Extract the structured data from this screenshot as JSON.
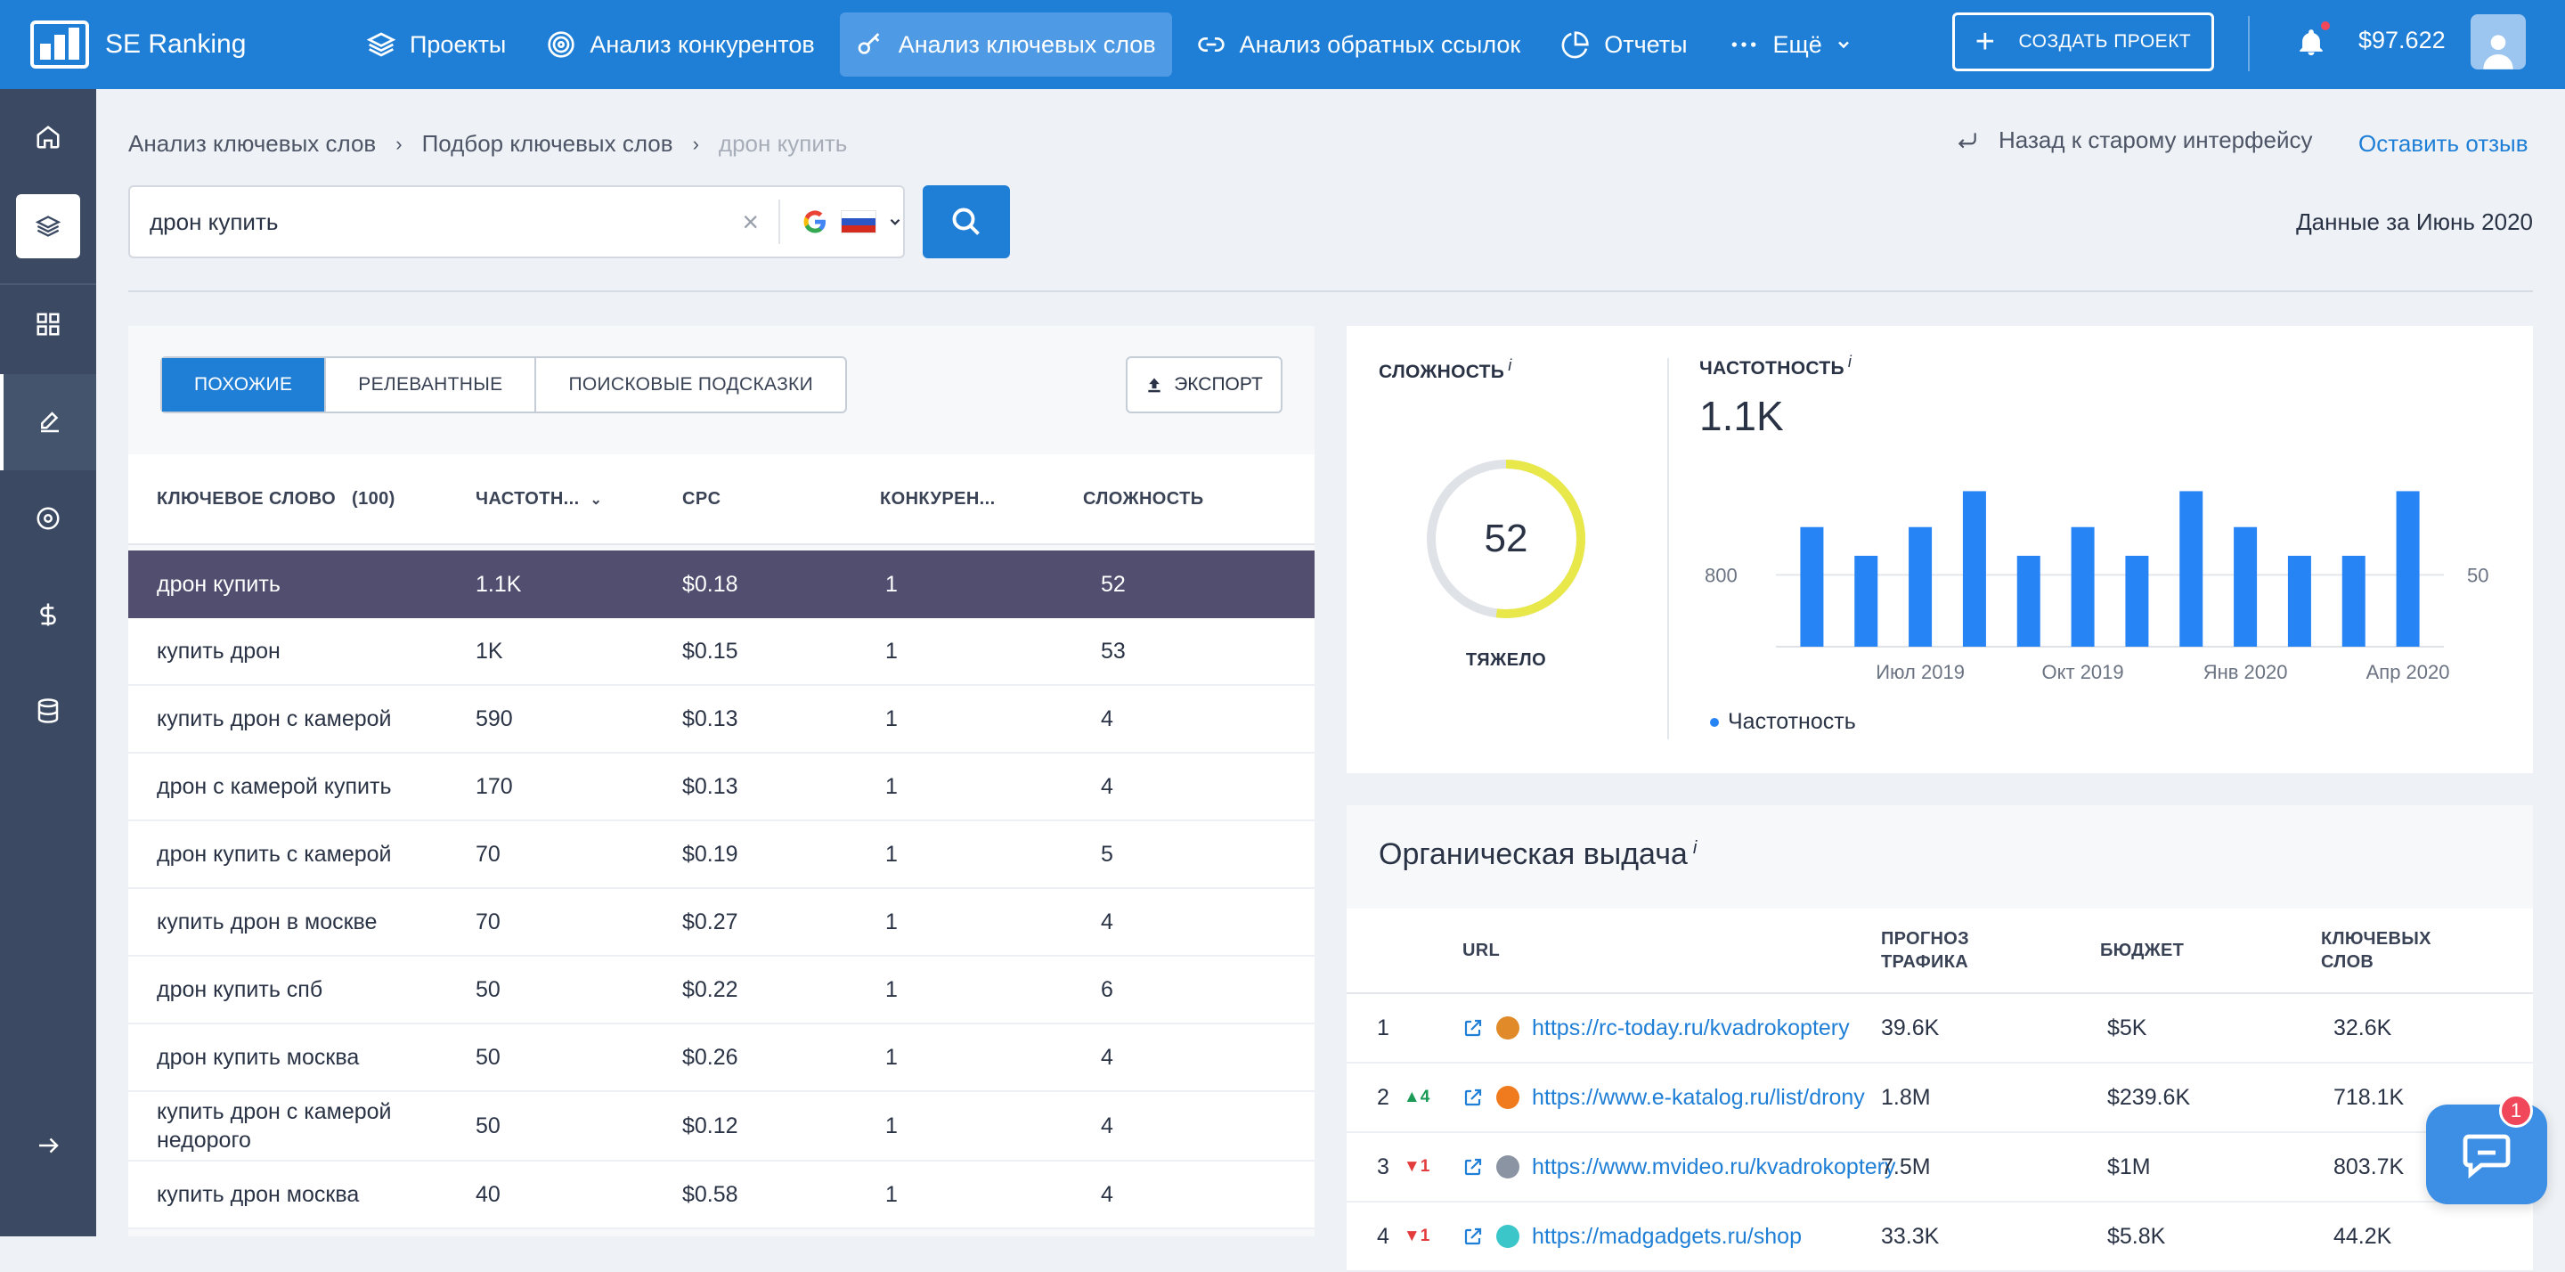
{
  "app": {
    "name": "SE Ranking"
  },
  "nav": {
    "items": [
      {
        "label": "Проекты",
        "icon": "layers-icon"
      },
      {
        "label": "Анализ конкурентов",
        "icon": "target-icon"
      },
      {
        "label": "Анализ ключевых слов",
        "icon": "key-icon",
        "active": true
      },
      {
        "label": "Анализ обратных ссылок",
        "icon": "link-icon"
      },
      {
        "label": "Отчеты",
        "icon": "pie-icon"
      },
      {
        "label": "Ещё",
        "icon": "dots-icon"
      }
    ],
    "create_project": "СОЗДАТЬ ПРОЕКТ",
    "balance": "$97.622"
  },
  "breadcrumb": {
    "level1": "Анализ ключевых слов",
    "level2": "Подбор ключевых слов",
    "current": "дрон купить"
  },
  "header_links": {
    "back": "Назад к старому интерфейсу",
    "feedback": "Оставить отзыв"
  },
  "search": {
    "value": "дрон купить"
  },
  "data_date": "Данные за Июнь 2020",
  "tabs": [
    "ПОХОЖИЕ",
    "РЕЛЕВАНТНЫЕ",
    "ПОИСКОВЫЕ ПОДСКАЗКИ"
  ],
  "export_label": "ЭКСПОРТ",
  "keywords_table": {
    "headers": {
      "keyword": "КЛЮЧЕВОЕ СЛОВО",
      "count": "(100)",
      "volume": "ЧАСТОТН...",
      "cpc": "CPC",
      "competition": "КОНКУРЕН...",
      "difficulty": "СЛОЖНОСТЬ"
    },
    "rows": [
      {
        "keyword": "дрон купить",
        "volume": "1.1K",
        "cpc": "$0.18",
        "competition": "1",
        "difficulty": "52"
      },
      {
        "keyword": "купить дрон",
        "volume": "1K",
        "cpc": "$0.15",
        "competition": "1",
        "difficulty": "53"
      },
      {
        "keyword": "купить дрон с камерой",
        "volume": "590",
        "cpc": "$0.13",
        "competition": "1",
        "difficulty": "4"
      },
      {
        "keyword": "дрон с камерой купить",
        "volume": "170",
        "cpc": "$0.13",
        "competition": "1",
        "difficulty": "4"
      },
      {
        "keyword": "дрон купить с камерой",
        "volume": "70",
        "cpc": "$0.19",
        "competition": "1",
        "difficulty": "5"
      },
      {
        "keyword": "купить дрон в москве",
        "volume": "70",
        "cpc": "$0.27",
        "competition": "1",
        "difficulty": "4"
      },
      {
        "keyword": "дрон купить спб",
        "volume": "50",
        "cpc": "$0.22",
        "competition": "1",
        "difficulty": "6"
      },
      {
        "keyword": "дрон купить москва",
        "volume": "50",
        "cpc": "$0.26",
        "competition": "1",
        "difficulty": "4"
      },
      {
        "keyword": "купить дрон с камерой недорого",
        "volume": "50",
        "cpc": "$0.12",
        "competition": "1",
        "difficulty": "4"
      },
      {
        "keyword": "купить дрон москва",
        "volume": "40",
        "cpc": "$0.58",
        "competition": "1",
        "difficulty": "4"
      }
    ]
  },
  "difficulty": {
    "label": "СЛОЖНОСТЬ",
    "info": "i",
    "value": 52,
    "word": "ТЯЖЕЛО",
    "ring_color": "#e8e84a",
    "track_color": "#dfe2e7"
  },
  "volume": {
    "label": "ЧАСТОТНОСТЬ",
    "info": "i",
    "value": "1.1K",
    "legend": "Частотность"
  },
  "chart_data": {
    "type": "bar",
    "series": [
      {
        "name": "Частотность",
        "values": [
          1000,
          880,
          1000,
          1150,
          880,
          1000,
          880,
          1150,
          1000,
          880,
          880,
          1150
        ],
        "color": "#2684f5"
      }
    ],
    "x_tick_labels": [
      "Июл 2019",
      "Окт 2019",
      "Янв 2020",
      "Апр 2020"
    ],
    "left_axis_label": "800",
    "right_axis_label": "50",
    "ylim": [
      500,
      1200
    ],
    "grid": "single reference line at 800"
  },
  "organic": {
    "title": "Органическая выдача",
    "info": "i",
    "headers": {
      "url": "URL",
      "traffic_l1": "ПРОГНОЗ",
      "traffic_l2": "ТРАФИКА",
      "budget": "БЮДЖЕТ",
      "keywords_l1": "КЛЮЧЕВЫХ",
      "keywords_l2": "СЛОВ"
    },
    "rows": [
      {
        "pos": "1",
        "change": "",
        "dir": "",
        "url": "https://rc-today.ru/kvadrokoptery",
        "traffic": "39.6K",
        "budget": "$5K",
        "keywords": "32.6K",
        "fav_color": "#e08a2a"
      },
      {
        "pos": "2",
        "change": "▲4",
        "dir": "up",
        "url": "https://www.e-katalog.ru/list/drony",
        "traffic": "1.8M",
        "budget": "$239.6K",
        "keywords": "718.1K",
        "fav_color": "#f07b1e"
      },
      {
        "pos": "3",
        "change": "▼1",
        "dir": "down",
        "url": "https://www.mvideo.ru/kvadrokoptery",
        "traffic": "7.5M",
        "budget": "$1M",
        "keywords": "803.7K",
        "fav_color": "#8b94a3"
      },
      {
        "pos": "4",
        "change": "▼1",
        "dir": "down",
        "url": "https://madgadgets.ru/shop",
        "traffic": "33.3K",
        "budget": "$5.8K",
        "keywords": "44.2K",
        "fav_color": "#3bc6c9"
      }
    ]
  },
  "chat": {
    "badge": "1"
  }
}
